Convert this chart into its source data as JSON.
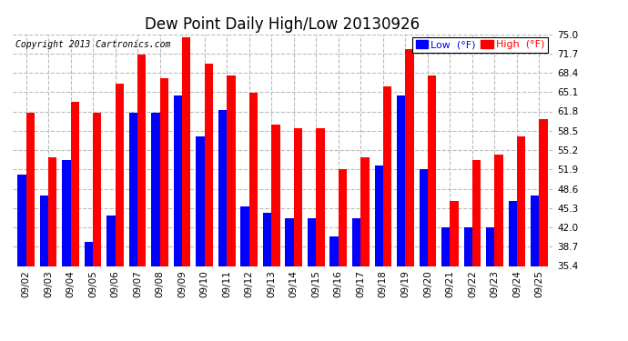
{
  "title": "Dew Point Daily High/Low 20130926",
  "copyright": "Copyright 2013 Cartronics.com",
  "legend_low": "Low  (°F)",
  "legend_high": "High  (°F)",
  "categories": [
    "09/02",
    "09/03",
    "09/04",
    "09/05",
    "09/06",
    "09/07",
    "09/08",
    "09/09",
    "09/10",
    "09/11",
    "09/12",
    "09/13",
    "09/14",
    "09/15",
    "09/16",
    "09/17",
    "09/18",
    "09/19",
    "09/20",
    "09/21",
    "09/22",
    "09/23",
    "09/24",
    "09/25"
  ],
  "low_values": [
    51.0,
    47.5,
    53.5,
    39.5,
    44.0,
    61.5,
    61.5,
    64.5,
    57.5,
    62.0,
    45.5,
    44.5,
    43.5,
    43.5,
    40.5,
    43.5,
    52.5,
    64.5,
    52.0,
    42.0,
    42.0,
    42.0,
    46.5,
    47.5
  ],
  "high_values": [
    61.5,
    54.0,
    63.5,
    61.5,
    66.5,
    71.5,
    67.5,
    74.5,
    70.0,
    68.0,
    65.0,
    59.5,
    59.0,
    59.0,
    52.0,
    54.0,
    66.0,
    72.5,
    68.0,
    46.5,
    53.5,
    54.5,
    57.5,
    60.5
  ],
  "ymin": 35.4,
  "ymax": 75.0,
  "yticks": [
    35.4,
    38.7,
    42.0,
    45.3,
    48.6,
    51.9,
    55.2,
    58.5,
    61.8,
    65.1,
    68.4,
    71.7,
    75.0
  ],
  "bar_width": 0.38,
  "low_color": "#0000FF",
  "high_color": "#FF0000",
  "background_color": "#FFFFFF",
  "grid_color": "#BBBBBB",
  "title_fontsize": 12,
  "tick_fontsize": 7.5,
  "legend_fontsize": 8,
  "copyright_fontsize": 7
}
